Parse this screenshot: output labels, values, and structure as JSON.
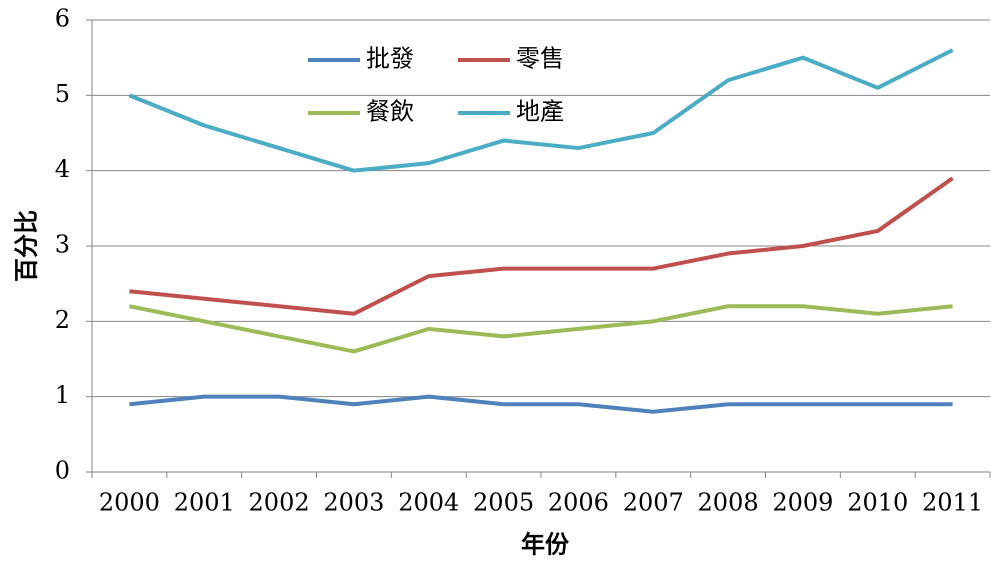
{
  "chart_data": {
    "type": "line",
    "categories": [
      "2000",
      "2001",
      "2002",
      "2003",
      "2004",
      "2005",
      "2006",
      "2007",
      "2008",
      "2009",
      "2010",
      "2011"
    ],
    "series": [
      {
        "name": "批發",
        "color": "#4f81bd",
        "values": [
          0.9,
          1.0,
          1.0,
          0.9,
          1.0,
          0.9,
          0.9,
          0.8,
          0.9,
          0.9,
          0.9,
          0.9
        ]
      },
      {
        "name": "零售",
        "color": "#c0504d",
        "values": [
          2.4,
          2.3,
          2.2,
          2.1,
          2.6,
          2.7,
          2.7,
          2.7,
          2.9,
          3.0,
          3.2,
          3.9
        ]
      },
      {
        "name": "餐飲",
        "color": "#9bbb59",
        "values": [
          2.2,
          2.0,
          1.8,
          1.6,
          1.9,
          1.8,
          1.9,
          2.0,
          2.2,
          2.2,
          2.1,
          2.2
        ]
      },
      {
        "name": "地產",
        "color": "#4bacc6",
        "values": [
          5.0,
          4.6,
          4.3,
          4.0,
          4.1,
          4.4,
          4.3,
          4.5,
          5.2,
          5.5,
          5.1,
          5.6
        ]
      }
    ],
    "x_label": "年份",
    "y_label": "百分比",
    "ylim": [
      0,
      6
    ],
    "yticks": [
      0,
      1,
      2,
      3,
      4,
      5,
      6
    ],
    "grid": true
  }
}
